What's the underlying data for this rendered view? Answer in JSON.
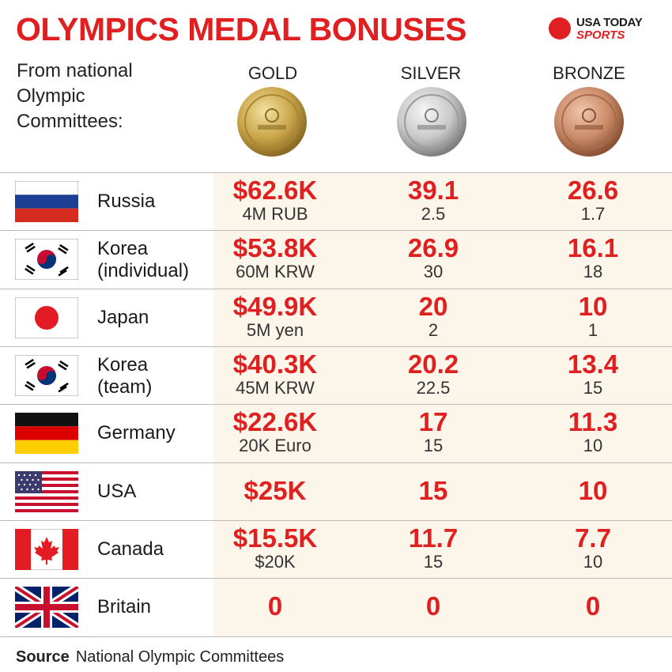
{
  "header": {
    "title": "OLYMPICS MEDAL BONUSES",
    "logo_line1": "USA TODAY",
    "logo_line2": "SPORTS",
    "subtitle_lines": [
      "From national",
      "Olympic",
      "Committees:"
    ]
  },
  "colors": {
    "accent": "#e02020",
    "row_tint": "#fbf5ea",
    "gold": "#c9a54a",
    "silver": "#c8c8c8",
    "bronze": "#c98a68"
  },
  "chart_data": {
    "type": "table",
    "columns": [
      "GOLD",
      "SILVER",
      "BRONZE"
    ],
    "rows": [
      {
        "country": [
          "Russia"
        ],
        "flag": "russia-flag-icon",
        "gold": "$62.6K",
        "gold_local": "4M RUB",
        "silver": "39.1",
        "silver_local": "2.5",
        "bronze": "26.6",
        "bronze_local": "1.7"
      },
      {
        "country": [
          "Korea",
          "(individual)"
        ],
        "flag": "south-korea-flag-icon",
        "gold": "$53.8K",
        "gold_local": "60M KRW",
        "silver": "26.9",
        "silver_local": "30",
        "bronze": "16.1",
        "bronze_local": "18"
      },
      {
        "country": [
          "Japan"
        ],
        "flag": "japan-flag-icon",
        "gold": "$49.9K",
        "gold_local": "5M yen",
        "silver": "20",
        "silver_local": "2",
        "bronze": "10",
        "bronze_local": "1"
      },
      {
        "country": [
          "Korea",
          "(team)"
        ],
        "flag": "south-korea-flag-icon",
        "gold": "$40.3K",
        "gold_local": "45M KRW",
        "silver": "20.2",
        "silver_local": "22.5",
        "bronze": "13.4",
        "bronze_local": "15"
      },
      {
        "country": [
          "Germany"
        ],
        "flag": "germany-flag-icon",
        "gold": "$22.6K",
        "gold_local": "20K Euro",
        "silver": "17",
        "silver_local": "15",
        "bronze": "11.3",
        "bronze_local": "10"
      },
      {
        "country": [
          "USA"
        ],
        "flag": "usa-flag-icon",
        "gold": "$25K",
        "gold_local": "",
        "silver": "15",
        "silver_local": "",
        "bronze": "10",
        "bronze_local": ""
      },
      {
        "country": [
          "Canada"
        ],
        "flag": "canada-flag-icon",
        "gold": "$15.5K",
        "gold_local": "$20K",
        "silver": "11.7",
        "silver_local": "15",
        "bronze": "7.7",
        "bronze_local": "10"
      },
      {
        "country": [
          "Britain"
        ],
        "flag": "britain-flag-icon",
        "gold": "0",
        "gold_local": "",
        "silver": "0",
        "silver_local": "",
        "bronze": "0",
        "bronze_local": ""
      }
    ]
  },
  "footer": {
    "source_label": "Source",
    "source_text": "National Olympic Committees"
  }
}
